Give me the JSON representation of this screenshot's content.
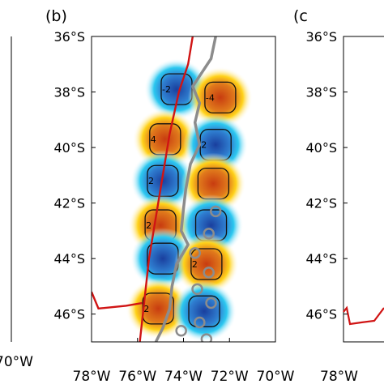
{
  "panels": [
    {
      "id": "a",
      "label": "",
      "x_tick_labels": [
        "70°W"
      ]
    },
    {
      "id": "b",
      "label": "(b)",
      "y_tick_labels": [
        "36°S",
        "38°S",
        "40°S",
        "42°S",
        "44°S",
        "46°S"
      ],
      "x_tick_labels": [
        "78°W",
        "76°W",
        "74°W",
        "72°W",
        "70°W"
      ]
    },
    {
      "id": "c",
      "label": "(c",
      "y_tick_labels": [
        "36°S",
        "38°S",
        "40°S",
        "42°S",
        "44°S",
        "46°S"
      ],
      "x_tick_labels": [
        "78°W"
      ]
    }
  ],
  "map": {
    "extent": {
      "lon": [
        -78,
        -70
      ],
      "lat": [
        -47,
        -36
      ]
    },
    "colors": {
      "positive": "#d45a14",
      "negative": "#1f5fb0",
      "halo_pos": "#ffd21a",
      "halo_neg": "#2cc8f0",
      "trench": "#d01414",
      "coast": "#8c8c8c",
      "contour": "#111111"
    },
    "anomalies": [
      {
        "lon": -74.3,
        "lat": -37.9,
        "sign": "negative",
        "contour_label": "-2"
      },
      {
        "lon": -72.4,
        "lat": -38.2,
        "sign": "positive",
        "contour_label": "-4"
      },
      {
        "lon": -74.8,
        "lat": -39.7,
        "sign": "positive",
        "contour_label": "4"
      },
      {
        "lon": -72.6,
        "lat": -39.9,
        "sign": "negative",
        "contour_label": "2"
      },
      {
        "lon": -74.9,
        "lat": -41.2,
        "sign": "negative",
        "contour_label": "2"
      },
      {
        "lon": -72.7,
        "lat": -41.3,
        "sign": "positive",
        "contour_label": ""
      },
      {
        "lon": -75.0,
        "lat": -42.8,
        "sign": "positive",
        "contour_label": "2"
      },
      {
        "lon": -72.8,
        "lat": -42.8,
        "sign": "negative",
        "contour_label": ""
      },
      {
        "lon": -74.9,
        "lat": -44.0,
        "sign": "negative",
        "contour_label": ""
      },
      {
        "lon": -73.0,
        "lat": -44.2,
        "sign": "positive",
        "contour_label": "2"
      },
      {
        "lon": -75.1,
        "lat": -45.8,
        "sign": "positive",
        "contour_label": "2"
      },
      {
        "lon": -73.1,
        "lat": -45.9,
        "sign": "negative",
        "contour_label": ""
      }
    ],
    "trench": [
      [
        -73.6,
        -36.0
      ],
      [
        -73.8,
        -37.0
      ],
      [
        -74.2,
        -38.0
      ],
      [
        -74.6,
        -39.5
      ],
      [
        -74.9,
        -41.0
      ],
      [
        -75.2,
        -42.5
      ],
      [
        -75.5,
        -44.0
      ],
      [
        -75.7,
        -45.5
      ],
      [
        -75.9,
        -47.0
      ]
    ],
    "trench_spur": [
      [
        -78.0,
        -45.2
      ],
      [
        -77.7,
        -45.8
      ],
      [
        -76.5,
        -45.7
      ],
      [
        -75.8,
        -45.6
      ]
    ],
    "coast": [
      [
        -72.6,
        -36.0
      ],
      [
        -72.8,
        -36.8
      ],
      [
        -73.2,
        -37.3
      ],
      [
        -73.6,
        -37.8
      ],
      [
        -73.3,
        -38.4
      ],
      [
        -73.5,
        -39.1
      ],
      [
        -73.3,
        -39.9
      ],
      [
        -73.7,
        -40.6
      ],
      [
        -73.9,
        -41.5
      ],
      [
        -74.0,
        -42.2
      ],
      [
        -74.1,
        -43.0
      ],
      [
        -73.8,
        -43.5
      ],
      [
        -74.3,
        -44.2
      ],
      [
        -74.5,
        -45.0
      ],
      [
        -74.6,
        -45.8
      ],
      [
        -74.9,
        -46.5
      ],
      [
        -75.2,
        -47.0
      ]
    ],
    "islands": [
      [
        -72.6,
        -42.3
      ],
      [
        -72.9,
        -43.1
      ],
      [
        -73.5,
        -43.8
      ],
      [
        -72.9,
        -44.5
      ],
      [
        -73.4,
        -45.1
      ],
      [
        -72.8,
        -45.6
      ],
      [
        -73.3,
        -46.3
      ],
      [
        -73.0,
        -46.9
      ],
      [
        -74.1,
        -46.6
      ]
    ]
  }
}
